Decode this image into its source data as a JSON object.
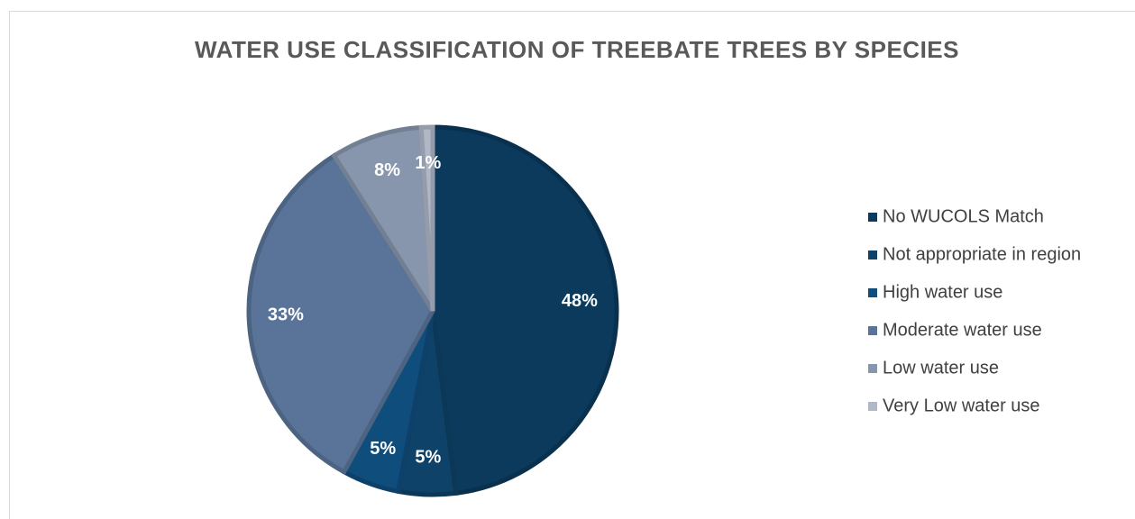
{
  "chart_data": {
    "type": "pie",
    "title": "WATER USE CLASSIFICATION OF TREEBATE TREES BY SPECIES",
    "categories": [
      "No WUCOLS Match",
      "Not appropriate in region",
      "High water use",
      "Moderate water use",
      "Low water use",
      "Very Low water use"
    ],
    "values": [
      48,
      5,
      5,
      33,
      8,
      1
    ],
    "value_labels": [
      "48%",
      "5%",
      "5%",
      "33%",
      "8%",
      "1%"
    ],
    "colors": [
      "#0b3a5c",
      "#0e4268",
      "#0f4d7d",
      "#5a7499",
      "#8796ad",
      "#b0b8c7"
    ],
    "legend": "right"
  }
}
